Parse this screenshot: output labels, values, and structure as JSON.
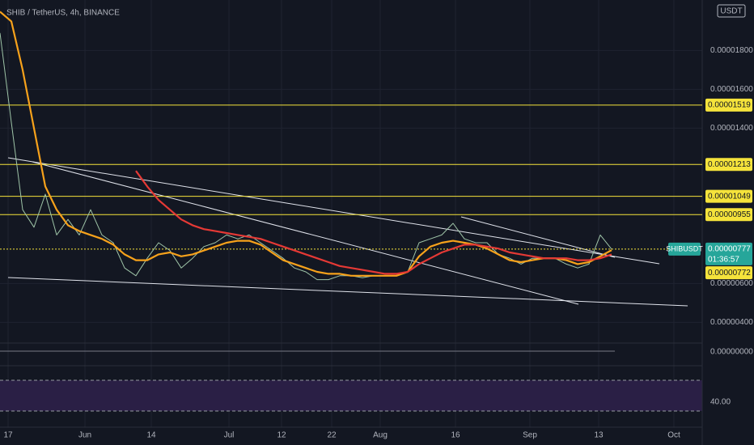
{
  "chart_data": {
    "type": "line",
    "title": "SHIB / TetherUS, 4h, BINANCE",
    "currency": "USDT",
    "xticks": [
      "17",
      "Jun",
      "14",
      "Jul",
      "12",
      "22",
      "Aug",
      "16",
      "Sep",
      "13",
      "Oct"
    ],
    "ylim": [
      3.1e-06,
      2.06e-05
    ],
    "yticks": [
      {
        "value": 1.8e-05,
        "label": "0.00001800"
      },
      {
        "value": 1.6e-05,
        "label": "0.00001600"
      },
      {
        "value": 1.4e-05,
        "label": "0.00001400"
      },
      {
        "value": 6e-06,
        "label": "0.00000600"
      },
      {
        "value": 4e-06,
        "label": "0.00000400"
      }
    ],
    "grid": true,
    "series": [
      {
        "name": "SHIBUSDT",
        "color": "#9fc5a8",
        "values": [
          1.89e-05,
          1.43e-05,
          9.8e-06,
          8.9e-06,
          1.06e-05,
          8.5e-06,
          9.3e-06,
          8.5e-06,
          9.8e-06,
          8.5e-06,
          8.1e-06,
          6.8e-06,
          6.4e-06,
          7.3e-06,
          8.1e-06,
          7.7e-06,
          6.8e-06,
          7.3e-06,
          7.9e-06,
          8.1e-06,
          8.5e-06,
          8.3e-06,
          8.5e-06,
          8.1e-06,
          7.7e-06,
          7.3e-06,
          6.8e-06,
          6.6e-06,
          6.2e-06,
          6.2e-06,
          6.4e-06,
          6.4e-06,
          6.3e-06,
          6.4e-06,
          6.4e-06,
          6.4e-06,
          6.6e-06,
          8.1e-06,
          8.3e-06,
          8.5e-06,
          9.1e-06,
          8.3e-06,
          8.1e-06,
          8.1e-06,
          7.5e-06,
          7.3e-06,
          7e-06,
          7.3e-06,
          7.3e-06,
          7.3e-06,
          7e-06,
          6.8e-06,
          7e-06,
          8.5e-06,
          7.77e-06
        ]
      },
      {
        "color": "#f7a21b",
        "values": [
          2e-05,
          1.95e-05,
          1.7e-05,
          1.4e-05,
          1.1e-05,
          9.8e-06,
          9e-06,
          8.7e-06,
          8.5e-06,
          8.3e-06,
          8e-06,
          7.5e-06,
          7.2e-06,
          7.2e-06,
          7.5e-06,
          7.6e-06,
          7.4e-06,
          7.5e-06,
          7.7e-06,
          7.9e-06,
          8.1e-06,
          8.2e-06,
          8.2e-06,
          8e-06,
          7.6e-06,
          7.2e-06,
          7e-06,
          6.8e-06,
          6.6e-06,
          6.5e-06,
          6.5e-06,
          6.4e-06,
          6.4e-06,
          6.4e-06,
          6.4e-06,
          6.4e-06,
          6.6e-06,
          7.4e-06,
          7.9e-06,
          8.1e-06,
          8.2e-06,
          8.1e-06,
          8e-06,
          7.8e-06,
          7.5e-06,
          7.2e-06,
          7.1e-06,
          7.2e-06,
          7.3e-06,
          7.3e-06,
          7.2e-06,
          7e-06,
          7.1e-06,
          7.4e-06,
          7.72e-06
        ]
      },
      {
        "color": "#e53935",
        "values": [
          null,
          null,
          null,
          null,
          null,
          null,
          null,
          null,
          null,
          null,
          null,
          null,
          1.18e-05,
          1.1e-05,
          1.03e-05,
          9.8e-06,
          9.3e-06,
          9e-06,
          8.8e-06,
          8.7e-06,
          8.6e-06,
          8.5e-06,
          8.4e-06,
          8.3e-06,
          8.1e-06,
          7.9e-06,
          7.7e-06,
          7.5e-06,
          7.3e-06,
          7.1e-06,
          6.9e-06,
          6.8e-06,
          6.7e-06,
          6.6e-06,
          6.5e-06,
          6.5e-06,
          6.6e-06,
          7e-06,
          7.3e-06,
          7.6e-06,
          7.8e-06,
          8e-06,
          8e-06,
          7.9e-06,
          7.8e-06,
          7.6e-06,
          7.5e-06,
          7.4e-06,
          7.3e-06,
          7.3e-06,
          7.3e-06,
          7.2e-06,
          7.2e-06,
          7.3e-06,
          7.5e-06
        ]
      }
    ],
    "levels": [
      {
        "value": 1.519e-05,
        "label": "0.00001519"
      },
      {
        "value": 1.213e-05,
        "label": "0.00001213"
      },
      {
        "value": 1.049e-05,
        "label": "0.00001049"
      },
      {
        "value": 9.55e-06,
        "label": "0.00000955"
      }
    ],
    "level_color": "#f5e33b",
    "last_price": {
      "value": 7.77e-06,
      "label": "0.00000777",
      "countdown": "01:36:57"
    },
    "ma_price": {
      "value": 7.72e-06,
      "label": "0.00000772"
    },
    "macd_label": "0.00000000",
    "rsi_label": "40.00"
  }
}
